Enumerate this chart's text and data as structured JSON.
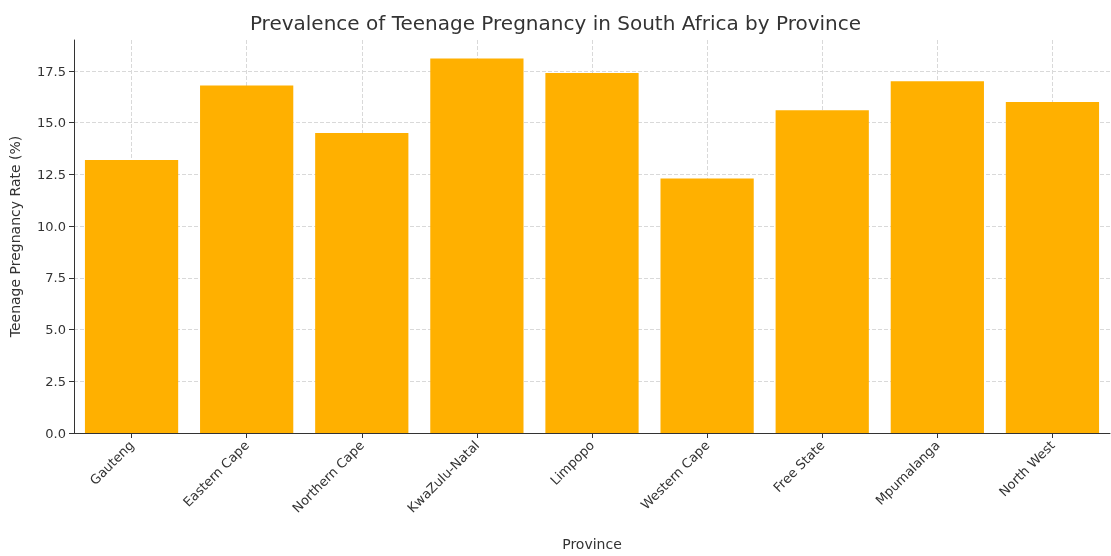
{
  "chart_data": {
    "type": "bar",
    "title": "Prevalence of Teenage Pregnancy in South Africa by Province",
    "xlabel": "Province",
    "ylabel": "Teenage Pregnancy Rate (%)",
    "categories": [
      "Gauteng",
      "Eastern Cape",
      "Northern Cape",
      "KwaZulu-Natal",
      "Limpopo",
      "Western Cape",
      "Free State",
      "Mpumalanga",
      "North West"
    ],
    "values": [
      13.2,
      16.8,
      14.5,
      18.1,
      17.4,
      12.3,
      15.6,
      17.0,
      16.0
    ],
    "color": "#ffb000",
    "ylim": [
      0,
      19
    ],
    "yticks": [
      {
        "value": 0,
        "label": "0.0"
      },
      {
        "value": 2.5,
        "label": "2.5"
      },
      {
        "value": 5,
        "label": "5.0"
      },
      {
        "value": 7.5,
        "label": "7.5"
      },
      {
        "value": 10,
        "label": "10.0"
      },
      {
        "value": 12.5,
        "label": "12.5"
      },
      {
        "value": 15,
        "label": "15.0"
      },
      {
        "value": 17.5,
        "label": "17.5"
      }
    ],
    "grid": true
  }
}
